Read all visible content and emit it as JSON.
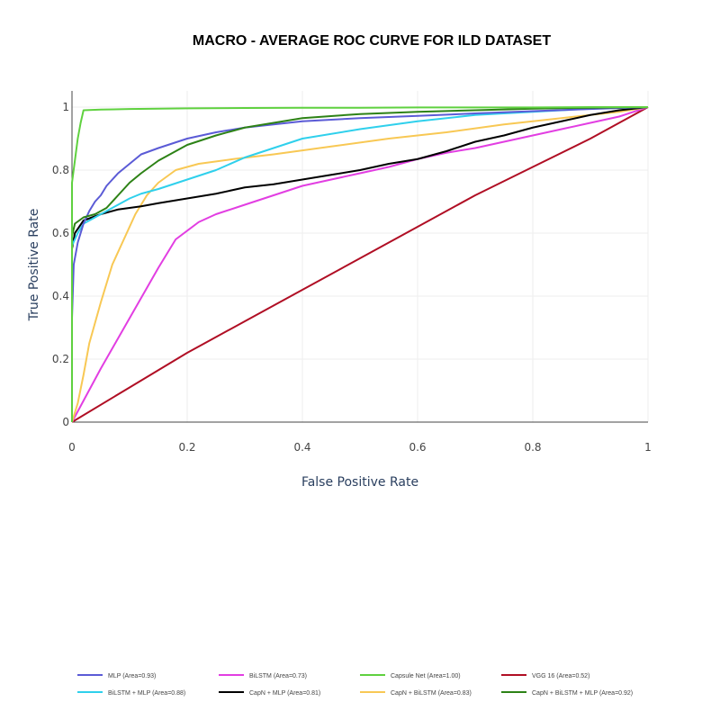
{
  "colors": {
    "MLP": "#5b5bd6",
    "BiLSTM": "#e23ee2",
    "CapsuleNet": "#5fd13f",
    "VGG16": "#b00e24",
    "BiLSTM_MLP": "#2fd0ec",
    "CapN_MLP": "#000000",
    "CapN_BiLSTM": "#f8c854",
    "CapN_BiLSTM_MLP": "#2d8216"
  },
  "chart_data": {
    "type": "line",
    "title": "MACRO - AVERAGE  ROC  CURVE  FOR  ILD  DATASET",
    "xlabel": "False Positive Rate",
    "ylabel": "True Positive Rate",
    "xlim": [
      0,
      1
    ],
    "ylim": [
      0,
      1
    ],
    "x_ticks": [
      "0",
      "0.2",
      "0.4",
      "0.6",
      "0.8",
      "1"
    ],
    "y_ticks": [
      "0",
      "0.2",
      "0.4",
      "0.6",
      "0.8",
      "1"
    ],
    "grid": true,
    "legend_position": "bottom",
    "series": [
      {
        "name": "MLP (Area=0.93)",
        "color_key": "MLP",
        "x": [
          0,
          0,
          0.003,
          0.01,
          0.02,
          0.03,
          0.04,
          0.05,
          0.06,
          0.07,
          0.08,
          0.1,
          0.12,
          0.15,
          0.2,
          0.25,
          0.3,
          0.4,
          0.5,
          0.6,
          0.7,
          0.8,
          0.9,
          1
        ],
        "y": [
          0,
          0.33,
          0.5,
          0.57,
          0.63,
          0.67,
          0.7,
          0.72,
          0.75,
          0.77,
          0.79,
          0.82,
          0.85,
          0.87,
          0.9,
          0.92,
          0.935,
          0.955,
          0.965,
          0.972,
          0.98,
          0.987,
          0.994,
          1
        ]
      },
      {
        "name": "BiLSTM (Area=0.73)",
        "color_key": "BiLSTM",
        "x": [
          0,
          0.05,
          0.1,
          0.15,
          0.18,
          0.22,
          0.25,
          0.3,
          0.35,
          0.4,
          0.45,
          0.5,
          0.55,
          0.6,
          0.65,
          0.7,
          0.75,
          0.8,
          0.85,
          0.9,
          0.95,
          1
        ],
        "y": [
          0,
          0.17,
          0.33,
          0.49,
          0.58,
          0.635,
          0.66,
          0.69,
          0.72,
          0.75,
          0.77,
          0.79,
          0.81,
          0.835,
          0.855,
          0.87,
          0.89,
          0.91,
          0.93,
          0.95,
          0.97,
          1
        ]
      },
      {
        "name": "Capsule Net (Area=1.00)",
        "color_key": "CapsuleNet",
        "x": [
          0,
          0,
          0.005,
          0.01,
          0.015,
          0.02,
          0.05,
          0.1,
          0.2,
          0.3,
          0.4,
          0.5,
          0.6,
          0.7,
          0.8,
          0.9,
          1
        ],
        "y": [
          0,
          0.76,
          0.83,
          0.9,
          0.95,
          0.99,
          0.992,
          0.994,
          0.996,
          0.997,
          0.998,
          0.998,
          0.999,
          0.999,
          0.999,
          1,
          1
        ]
      },
      {
        "name": "VGG 16 (Area=0.52)",
        "color_key": "VGG16",
        "x": [
          0,
          0.1,
          0.2,
          0.3,
          0.4,
          0.5,
          0.6,
          0.7,
          0.8,
          0.9,
          1
        ],
        "y": [
          0,
          0.11,
          0.22,
          0.32,
          0.42,
          0.52,
          0.62,
          0.72,
          0.81,
          0.9,
          1
        ]
      },
      {
        "name": "BiLSTM + MLP (Area=0.88)",
        "color_key": "BiLSTM_MLP",
        "x": [
          0,
          0,
          0.01,
          0.02,
          0.04,
          0.06,
          0.08,
          0.1,
          0.12,
          0.15,
          0.2,
          0.25,
          0.3,
          0.35,
          0.4,
          0.5,
          0.6,
          0.7,
          0.8,
          0.9,
          1
        ],
        "y": [
          0,
          0.56,
          0.6,
          0.63,
          0.65,
          0.67,
          0.69,
          0.71,
          0.725,
          0.74,
          0.77,
          0.8,
          0.84,
          0.87,
          0.9,
          0.93,
          0.955,
          0.975,
          0.985,
          0.995,
          1
        ]
      },
      {
        "name": "CapN + MLP (Area=0.81)",
        "color_key": "CapN_MLP",
        "x": [
          0,
          0,
          0.005,
          0.02,
          0.05,
          0.08,
          0.12,
          0.15,
          0.2,
          0.25,
          0.3,
          0.35,
          0.4,
          0.45,
          0.5,
          0.55,
          0.6,
          0.65,
          0.7,
          0.75,
          0.8,
          0.85,
          0.9,
          0.95,
          1
        ],
        "y": [
          0,
          0.55,
          0.6,
          0.64,
          0.66,
          0.675,
          0.685,
          0.695,
          0.71,
          0.725,
          0.745,
          0.755,
          0.77,
          0.785,
          0.8,
          0.82,
          0.835,
          0.86,
          0.89,
          0.91,
          0.935,
          0.955,
          0.975,
          0.99,
          1
        ]
      },
      {
        "name": "CapN + BiLSTM (Area=0.83)",
        "color_key": "CapN_BiLSTM",
        "x": [
          0,
          0.01,
          0.02,
          0.03,
          0.05,
          0.07,
          0.09,
          0.11,
          0.13,
          0.15,
          0.18,
          0.22,
          0.28,
          0.35,
          0.45,
          0.55,
          0.65,
          0.75,
          0.85,
          0.95,
          1
        ],
        "y": [
          0,
          0.06,
          0.15,
          0.25,
          0.38,
          0.5,
          0.58,
          0.66,
          0.72,
          0.76,
          0.8,
          0.82,
          0.835,
          0.85,
          0.875,
          0.9,
          0.92,
          0.945,
          0.965,
          0.985,
          1
        ]
      },
      {
        "name": "CapN + BiLSTM + MLP (Area=0.92)",
        "color_key": "CapN_BiLSTM_MLP",
        "x": [
          0,
          0,
          0.005,
          0.02,
          0.04,
          0.06,
          0.08,
          0.1,
          0.12,
          0.15,
          0.2,
          0.25,
          0.3,
          0.35,
          0.4,
          0.5,
          0.6,
          0.7,
          0.8,
          0.9,
          1
        ],
        "y": [
          0,
          0.59,
          0.63,
          0.65,
          0.66,
          0.68,
          0.72,
          0.76,
          0.79,
          0.83,
          0.88,
          0.91,
          0.935,
          0.95,
          0.965,
          0.978,
          0.985,
          0.99,
          0.995,
          0.998,
          1
        ]
      }
    ]
  }
}
